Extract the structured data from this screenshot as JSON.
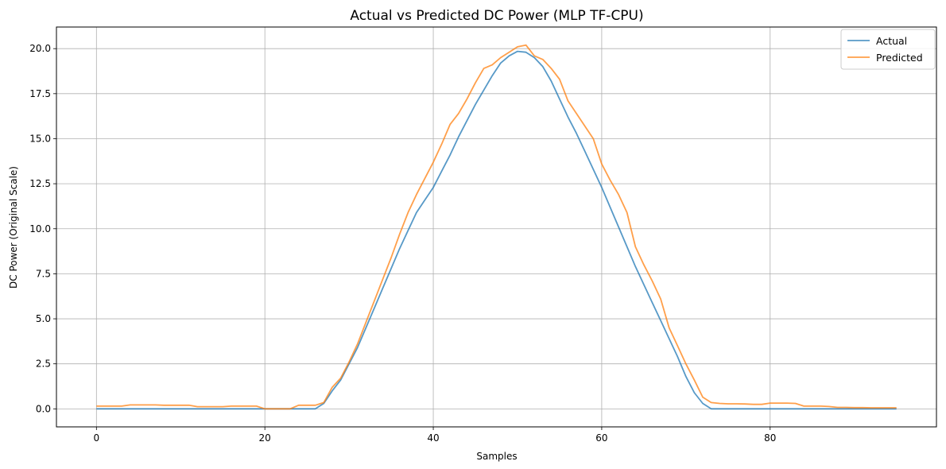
{
  "chart_data": {
    "type": "line",
    "title": "Actual vs Predicted DC Power (MLP TF-CPU)",
    "xlabel": "Samples",
    "ylabel": "DC Power (Original Scale)",
    "xlim": [
      -4.75,
      99.75
    ],
    "ylim": [
      -1.0,
      21.2
    ],
    "x_ticks": [
      0,
      20,
      40,
      60,
      80
    ],
    "y_ticks": [
      0.0,
      2.5,
      5.0,
      7.5,
      10.0,
      12.5,
      15.0,
      17.5,
      20.0
    ],
    "x_tick_labels": [
      "0",
      "20",
      "40",
      "60",
      "80"
    ],
    "y_tick_labels": [
      "0.0",
      "2.5",
      "5.0",
      "7.5",
      "10.0",
      "12.5",
      "15.0",
      "17.5",
      "20.0"
    ],
    "grid": true,
    "legend_position": "top-right",
    "x": [
      0,
      1,
      2,
      3,
      4,
      5,
      6,
      7,
      8,
      9,
      10,
      11,
      12,
      13,
      14,
      15,
      16,
      17,
      18,
      19,
      20,
      21,
      22,
      23,
      24,
      25,
      26,
      27,
      28,
      29,
      30,
      31,
      32,
      33,
      34,
      35,
      36,
      37,
      38,
      39,
      40,
      41,
      42,
      43,
      44,
      45,
      46,
      47,
      48,
      49,
      50,
      51,
      52,
      53,
      54,
      55,
      56,
      57,
      58,
      59,
      60,
      61,
      62,
      63,
      64,
      65,
      66,
      67,
      68,
      69,
      70,
      71,
      72,
      73,
      74,
      75,
      76,
      77,
      78,
      79,
      80,
      81,
      82,
      83,
      84,
      85,
      86,
      87,
      88,
      89,
      90,
      91,
      92,
      93,
      94,
      95
    ],
    "series": [
      {
        "name": "Actual",
        "color": "#1f77b4",
        "values": [
          0,
          0,
          0,
          0,
          0,
          0,
          0,
          0,
          0,
          0,
          0,
          0,
          0,
          0,
          0,
          0,
          0,
          0,
          0,
          0,
          0,
          0,
          0,
          0,
          0,
          0,
          0,
          0.3,
          1.0,
          1.6,
          2.5,
          3.4,
          4.5,
          5.6,
          6.7,
          7.8,
          8.9,
          9.9,
          10.9,
          11.6,
          12.3,
          13.2,
          14.1,
          15.1,
          16.0,
          16.9,
          17.7,
          18.5,
          19.2,
          19.6,
          19.85,
          19.8,
          19.5,
          19.0,
          18.2,
          17.2,
          16.2,
          15.3,
          14.3,
          13.3,
          12.3,
          11.2,
          10.1,
          9.0,
          7.9,
          6.9,
          5.9,
          4.9,
          3.9,
          2.9,
          1.8,
          0.9,
          0.3,
          0,
          0,
          0,
          0,
          0,
          0,
          0,
          0,
          0,
          0,
          0,
          0,
          0,
          0,
          0,
          0,
          0,
          0,
          0,
          0,
          0,
          0,
          0
        ]
      },
      {
        "name": "Predicted",
        "color": "#ff7f0e",
        "values": [
          0.15,
          0.15,
          0.15,
          0.15,
          0.22,
          0.22,
          0.22,
          0.22,
          0.2,
          0.2,
          0.2,
          0.2,
          0.12,
          0.12,
          0.12,
          0.12,
          0.15,
          0.15,
          0.15,
          0.15,
          0,
          0,
          0,
          0,
          0.2,
          0.2,
          0.2,
          0.35,
          1.2,
          1.7,
          2.6,
          3.6,
          4.8,
          6.0,
          7.2,
          8.4,
          9.7,
          10.9,
          11.9,
          12.8,
          13.7,
          14.7,
          15.8,
          16.4,
          17.2,
          18.1,
          18.9,
          19.1,
          19.5,
          19.8,
          20.1,
          20.2,
          19.6,
          19.4,
          18.9,
          18.3,
          17.1,
          16.4,
          15.7,
          15.0,
          13.6,
          12.7,
          11.9,
          10.9,
          9.0,
          8.0,
          7.1,
          6.1,
          4.5,
          3.5,
          2.5,
          1.6,
          0.65,
          0.35,
          0.3,
          0.28,
          0.28,
          0.27,
          0.25,
          0.25,
          0.32,
          0.32,
          0.32,
          0.3,
          0.15,
          0.15,
          0.15,
          0.13,
          0.08,
          0.08,
          0.07,
          0.07,
          0.06,
          0.06,
          0.06,
          0.06
        ]
      }
    ]
  }
}
